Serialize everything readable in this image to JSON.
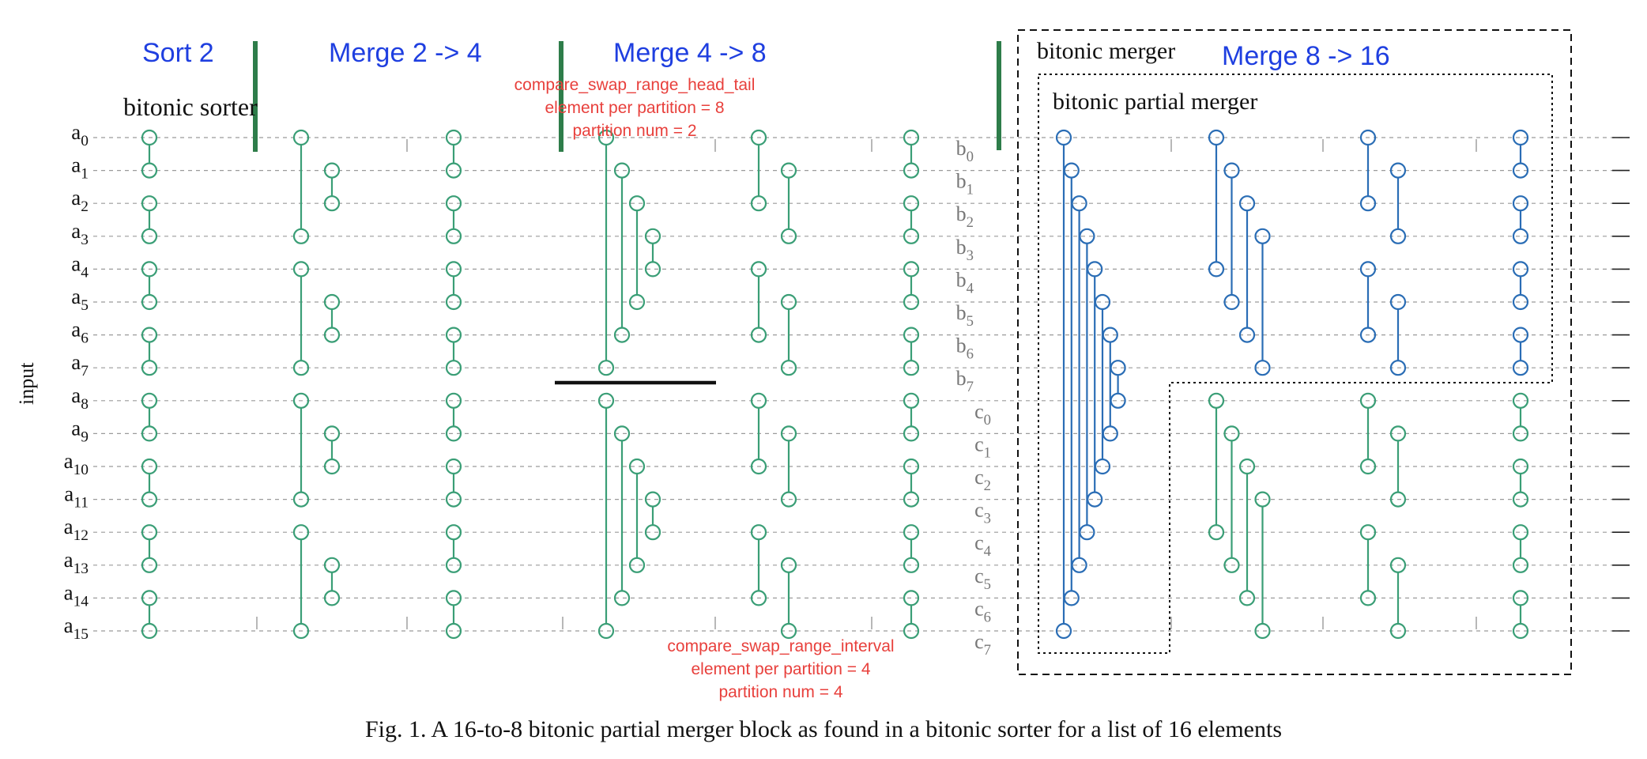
{
  "colors": {
    "green": "#3a9e76",
    "blue": "#2a6db5",
    "bar_green": "#2e7d4a",
    "stage_title": "#1f3fe0",
    "red_note": "#e8403c",
    "grid": "#9a9a9a",
    "gray_label": "#777777",
    "black": "#111111"
  },
  "stage_titles": [
    "Sort 2",
    "Merge 2 -> 4",
    "Merge 4 -> 8",
    "Merge 8 -> 16"
  ],
  "labels": {
    "bitonic_sorter": "bitonic sorter",
    "bitonic_merger": "bitonic merger",
    "bitonic_partial_merger": "bitonic partial merger",
    "input": "input"
  },
  "annotations": {
    "head_tail": [
      "compare_swap_range_head_tail",
      "element per partition = 8",
      "partition num = 2"
    ],
    "interval": [
      "compare_swap_range_interval",
      "element per partition = 4",
      "partition num = 4"
    ]
  },
  "caption": "Fig. 1.  A 16-to-8 bitonic partial merger block as found in a bitonic sorter for a list of 16 elements",
  "input_letter": "a",
  "inputs": [
    "0",
    "1",
    "2",
    "3",
    "4",
    "5",
    "6",
    "7",
    "8",
    "9",
    "10",
    "11",
    "12",
    "13",
    "14",
    "15"
  ],
  "b_letter": "b",
  "b_outputs": [
    "0",
    "1",
    "2",
    "3",
    "4",
    "5",
    "6",
    "7"
  ],
  "c_letter": "c",
  "c_outputs": [
    "0",
    "1",
    "2",
    "3",
    "4",
    "5",
    "6",
    "7"
  ]
}
